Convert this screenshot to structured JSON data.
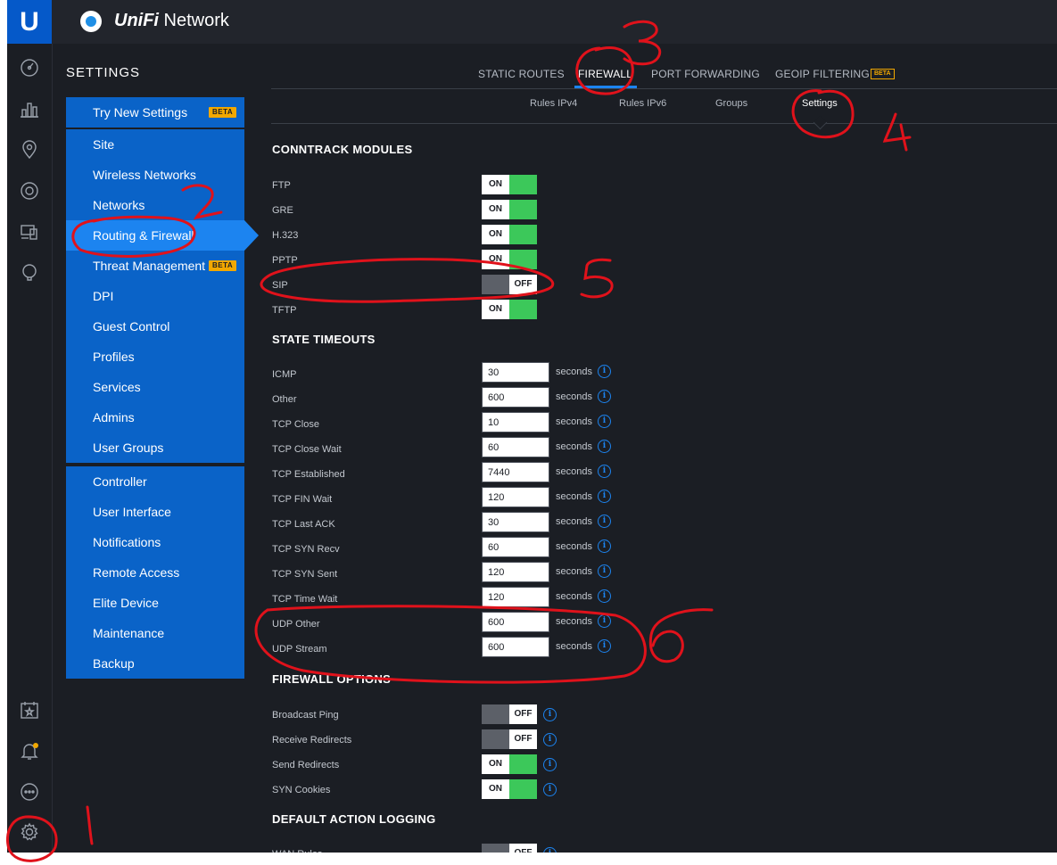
{
  "app": {
    "logo_letter": "U",
    "brand_bold": "UniFi",
    "brand_rest": " Network"
  },
  "rail": {
    "icons": [
      "dashboard-icon",
      "statistics-icon",
      "map-icon",
      "devices-icon",
      "clients-icon",
      "insights-icon",
      "events-icon",
      "alerts-icon",
      "chat-icon",
      "settings-icon"
    ]
  },
  "settings": {
    "title": "SETTINGS",
    "try_new": "Try New Settings",
    "beta": "BETA",
    "items_a": [
      "Site",
      "Wireless Networks",
      "Networks",
      "Routing & Firewall",
      "Threat Management",
      "DPI",
      "Guest Control",
      "Profiles",
      "Services",
      "Admins",
      "User Groups"
    ],
    "items_b": [
      "Controller",
      "User Interface",
      "Notifications",
      "Remote Access",
      "Elite Device",
      "Maintenance",
      "Backup"
    ]
  },
  "tabs": {
    "static_routes": "STATIC ROUTES",
    "firewall": "FIREWALL",
    "port_forwarding": "PORT FORWARDING",
    "geoip": "GEOIP FILTERING",
    "geoip_badge": "BETA"
  },
  "subtabs": {
    "rules_ipv4": "Rules IPv4",
    "rules_ipv6": "Rules IPv6",
    "groups": "Groups",
    "settings": "Settings"
  },
  "conntrack": {
    "title": "CONNTRACK MODULES",
    "on": "ON",
    "off": "OFF",
    "rows": [
      {
        "label": "FTP",
        "state": "ON"
      },
      {
        "label": "GRE",
        "state": "ON"
      },
      {
        "label": "H.323",
        "state": "ON"
      },
      {
        "label": "PPTP",
        "state": "ON"
      },
      {
        "label": "SIP",
        "state": "OFF"
      },
      {
        "label": "TFTP",
        "state": "ON"
      }
    ]
  },
  "timeouts": {
    "title": "STATE TIMEOUTS",
    "unit": "seconds",
    "rows": [
      {
        "label": "ICMP",
        "value": "30"
      },
      {
        "label": "Other",
        "value": "600"
      },
      {
        "label": "TCP Close",
        "value": "10"
      },
      {
        "label": "TCP Close Wait",
        "value": "60"
      },
      {
        "label": "TCP Established",
        "value": "7440"
      },
      {
        "label": "TCP FIN Wait",
        "value": "120"
      },
      {
        "label": "TCP Last ACK",
        "value": "30"
      },
      {
        "label": "TCP SYN Recv",
        "value": "60"
      },
      {
        "label": "TCP SYN Sent",
        "value": "120"
      },
      {
        "label": "TCP Time Wait",
        "value": "120"
      },
      {
        "label": "UDP Other",
        "value": "600"
      },
      {
        "label": "UDP Stream",
        "value": "600"
      }
    ]
  },
  "firewall_options": {
    "title": "FIREWALL OPTIONS",
    "rows": [
      {
        "label": "Broadcast Ping",
        "state": "OFF"
      },
      {
        "label": "Receive Redirects",
        "state": "OFF"
      },
      {
        "label": "Send Redirects",
        "state": "ON"
      },
      {
        "label": "SYN Cookies",
        "state": "ON"
      }
    ]
  },
  "default_logging": {
    "title": "DEFAULT ACTION LOGGING",
    "rows": [
      {
        "label": "WAN Rules",
        "state": "OFF"
      }
    ]
  },
  "annotations": [
    "1",
    "2",
    "3",
    "4",
    "5",
    "6"
  ],
  "colors": {
    "accent": "#1c84f0",
    "sidebar": "#0a63c8",
    "toggle_on": "#3cc85a",
    "annotation": "#e0121b",
    "badge": "#f2a800"
  }
}
